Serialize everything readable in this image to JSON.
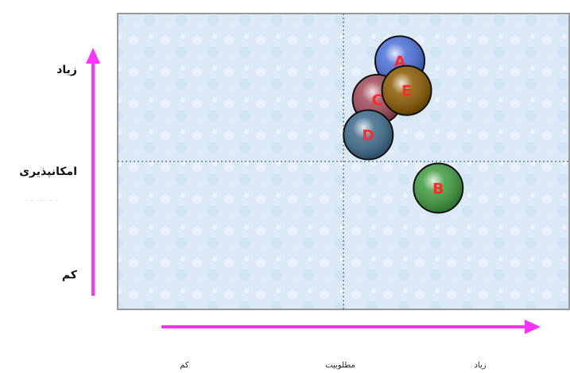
{
  "chart_data": {
    "type": "scatter",
    "title": "",
    "ylabel": "امکانپذیری",
    "xlabel": "مطلوبیت",
    "y_axis_labels": {
      "high": "زیاد",
      "low": "کم"
    },
    "x_axis_labels": {
      "high": "زیاد",
      "low": "کم"
    },
    "xlim": [
      0,
      100
    ],
    "ylim": [
      0,
      100
    ],
    "quadrant_lines": {
      "x": 50,
      "y": 50
    },
    "grid": false,
    "points": [
      {
        "label": "A",
        "x": 62.5,
        "y": 84,
        "color": "#4a6fd8",
        "text_color": "#ff2a2a"
      },
      {
        "label": "C",
        "x": 57.5,
        "y": 71,
        "color": "#a04858",
        "text_color": "#ff2a2a"
      },
      {
        "label": "E",
        "x": 64,
        "y": 74,
        "color": "#8a5a00",
        "text_color": "#ff2a2a"
      },
      {
        "label": "D",
        "x": 55.5,
        "y": 59,
        "color": "#3c6a8a",
        "text_color": "#ff2a2a"
      },
      {
        "label": "B",
        "x": 71,
        "y": 41,
        "color": "#3f9a3f",
        "text_color": "#ff2a2a"
      }
    ]
  }
}
